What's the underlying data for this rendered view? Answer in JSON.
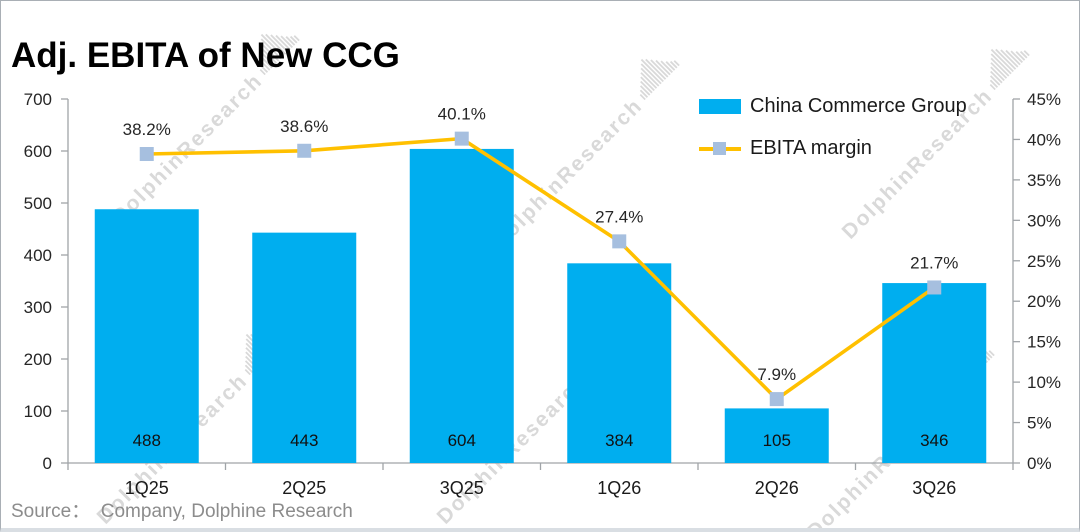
{
  "header": {
    "title": "Adj. EBITA of New CCG"
  },
  "footer": {
    "source": "Source：  Company, Dolphine Research"
  },
  "watermark": {
    "text": "DolphinResearch"
  },
  "legend": {
    "items": [
      {
        "label": "China Commerce Group",
        "swatch": "bar"
      },
      {
        "label": "EBITA margin",
        "swatch": "line-marker"
      }
    ]
  },
  "colors": {
    "bar": "#00AEEF",
    "line": "#FFC000",
    "marker": "#A6BFDF",
    "axis": "#A0A4A8",
    "text": "#262626",
    "watermark": "#D7D7D7",
    "source_text": "#8C8C8C"
  },
  "chart_data": {
    "type": "bar+line combo",
    "title": "Adj. EBITA of New CCG",
    "categories": [
      "1Q25",
      "2Q25",
      "3Q25",
      "1Q26",
      "2Q26",
      "3Q26"
    ],
    "series": [
      {
        "name": "China Commerce Group",
        "type": "bar",
        "axis": "left",
        "values": [
          488,
          443,
          604,
          384,
          105,
          346
        ],
        "labels": [
          "488",
          "443",
          "604",
          "384",
          "105",
          "346"
        ]
      },
      {
        "name": "EBITA margin",
        "type": "line",
        "axis": "right",
        "values": [
          38.2,
          38.6,
          40.1,
          27.4,
          7.9,
          21.7
        ],
        "labels": [
          "38.2%",
          "38.6%",
          "40.1%",
          "27.4%",
          "7.9%",
          "21.7%"
        ]
      }
    ],
    "left_axis": {
      "min": 0,
      "max": 700,
      "step": 100,
      "tick_labels": [
        "700",
        "600",
        "500",
        "400",
        "300",
        "200",
        "100",
        "0"
      ]
    },
    "right_axis": {
      "min": 0,
      "max": 45,
      "step": 5,
      "suffix": "%",
      "tick_labels": [
        "45%",
        "40%",
        "35%",
        "30%",
        "25%",
        "20%",
        "15%",
        "10%",
        "5%",
        "0%"
      ]
    },
    "grid": false,
    "legend_position": "top-right"
  }
}
